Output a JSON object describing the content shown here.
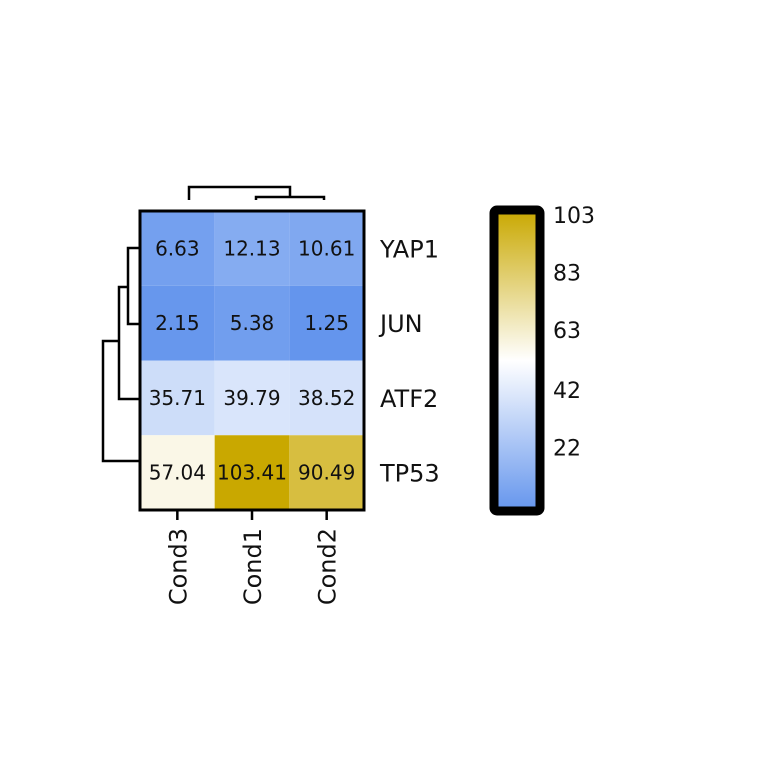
{
  "chart_data": {
    "type": "heatmap",
    "title": "",
    "xlabel": "",
    "ylabel": "",
    "rows": [
      "YAP1",
      "JUN",
      "ATF2",
      "TP53"
    ],
    "columns": [
      "Cond3",
      "Cond1",
      "Cond2"
    ],
    "values": [
      [
        6.63,
        12.13,
        10.61
      ],
      [
        2.15,
        5.38,
        1.25
      ],
      [
        35.71,
        39.79,
        38.52
      ],
      [
        57.04,
        103.41,
        90.49
      ]
    ],
    "cell_labels": [
      [
        "6.63",
        "12.13",
        "10.61"
      ],
      [
        "2.15",
        "5.38",
        "1.25"
      ],
      [
        "35.71",
        "39.79",
        "38.52"
      ],
      [
        "57.04",
        "103.41",
        "90.49"
      ]
    ],
    "colorbar": {
      "range": [
        1.25,
        103.41
      ],
      "ticks": [
        22,
        42,
        63,
        83,
        103
      ],
      "tick_labels": [
        "22",
        "42",
        "63",
        "83",
        "103"
      ],
      "placement": "right"
    },
    "colormap": {
      "low": "#6495ED",
      "mid": "#FFFFFF",
      "high": "#C9A800"
    },
    "row_dendrogram": true,
    "column_dendrogram": true
  }
}
